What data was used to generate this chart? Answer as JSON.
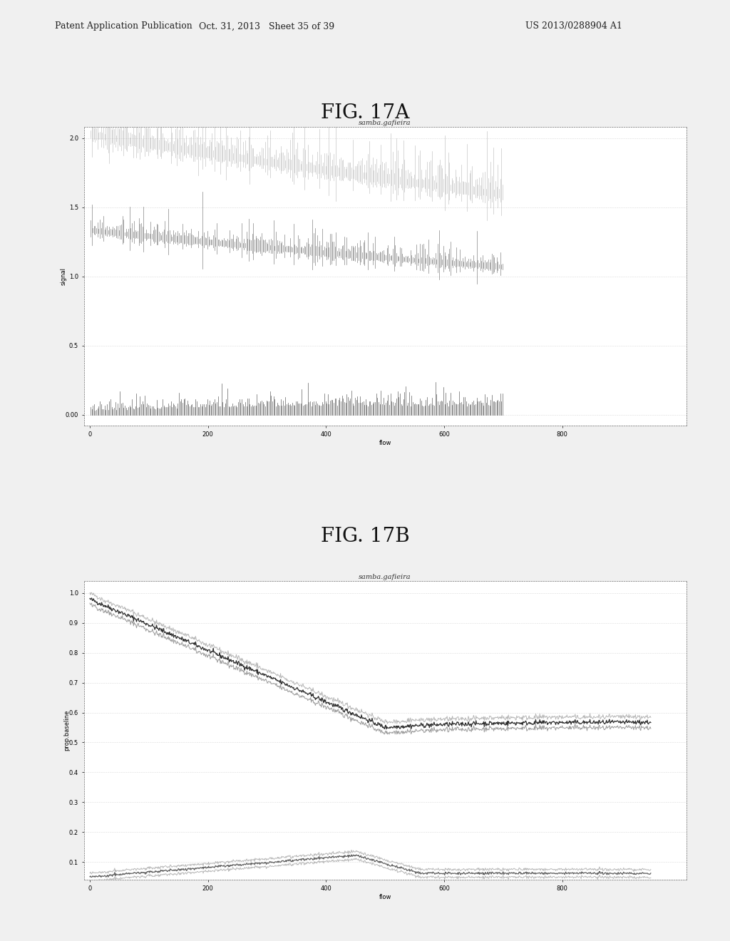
{
  "fig17a_title": "samba.gafieira",
  "fig17b_title": "samba.gafieira",
  "fig17a_xlabel": "flow",
  "fig17b_xlabel": "flow",
  "fig17a_ylabel": "signal",
  "fig17b_ylabel": "prop.baseline",
  "fig_label_a": "FIG. 17A",
  "fig_label_b": "FIG. 17B",
  "header_left": "Patent Application Publication",
  "header_center": "Oct. 31, 2013   Sheet 35 of 39",
  "header_right": "US 2013/0288904 A1",
  "fig17a_ylim": [
    -0.08,
    2.08
  ],
  "fig17a_yticks": [
    0.0,
    0.5,
    1.0,
    1.5,
    2.0
  ],
  "fig17a_yticklabels": [
    "0.00",
    "0.5",
    "1.0",
    "1.5",
    "2.0"
  ],
  "fig17a_xlim": [
    -10,
    1010
  ],
  "fig17a_xticks": [
    0,
    200,
    400,
    600,
    800
  ],
  "fig17b_ylim": [
    0.04,
    1.04
  ],
  "fig17b_yticks": [
    0.1,
    0.2,
    0.3,
    0.4,
    0.5,
    0.6,
    0.7,
    0.8,
    0.9,
    1.0
  ],
  "fig17b_yticklabels": [
    "0.1",
    "0.2",
    "0.3",
    "0.4",
    "0.5",
    "0.6",
    "0.7",
    "0.8",
    "0.9",
    "1.0"
  ],
  "fig17b_xlim": [
    -10,
    1010
  ],
  "fig17b_xticks": [
    0,
    200,
    400,
    600,
    800
  ],
  "background_color": "#f0f0f0",
  "plot_bg": "#ffffff",
  "header_fontsize": 9,
  "fig_label_fontsize": 20,
  "title_fontsize": 7,
  "axis_label_fontsize": 6,
  "tick_fontsize": 6
}
